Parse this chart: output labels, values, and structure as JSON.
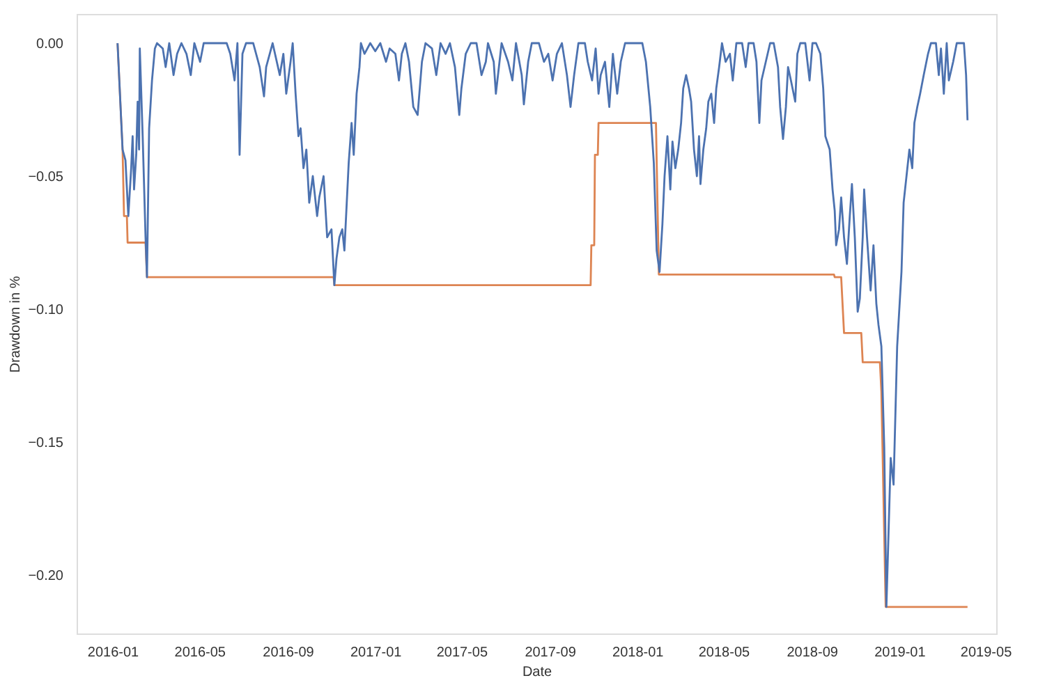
{
  "chart_data": {
    "type": "line",
    "xlabel": "Date",
    "ylabel": "Drawdown in %",
    "xlim": [
      "2015-11-12",
      "2019-05-16"
    ],
    "xticks": [
      "2016-01",
      "2016-05",
      "2016-09",
      "2017-01",
      "2017-05",
      "2017-09",
      "2018-01",
      "2018-05",
      "2018-09",
      "2019-01",
      "2019-05"
    ],
    "ylim": [
      -0.222,
      0.011
    ],
    "yticks": [
      {
        "value": 0,
        "label": "0.00"
      },
      {
        "value": -0.05,
        "label": "−0.05"
      },
      {
        "value": -0.1,
        "label": "−0.10"
      },
      {
        "value": -0.15,
        "label": "−0.15"
      },
      {
        "value": -0.2,
        "label": "−0.20"
      }
    ],
    "grid": false,
    "series": [
      {
        "color": "#4c72b0",
        "x": [
          "2016-01-08",
          "2016-01-15",
          "2016-01-19",
          "2016-01-23",
          "2016-01-27",
          "2016-01-29",
          "2016-01-31",
          "2016-02-03",
          "2016-02-05",
          "2016-02-07",
          "2016-02-08",
          "2016-02-12",
          "2016-02-16",
          "2016-02-18",
          "2016-02-21",
          "2016-02-25",
          "2016-02-29",
          "2016-03-03",
          "2016-03-11",
          "2016-03-15",
          "2016-03-20",
          "2016-03-26",
          "2016-03-31",
          "2016-04-06",
          "2016-04-13",
          "2016-04-19",
          "2016-04-24",
          "2016-05-02",
          "2016-05-07",
          "2016-05-17",
          "2016-05-30",
          "2016-06-08",
          "2016-06-13",
          "2016-06-19",
          "2016-06-23",
          "2016-06-26",
          "2016-06-30",
          "2016-07-05",
          "2016-07-15",
          "2016-07-24",
          "2016-07-30",
          "2016-08-02",
          "2016-08-11",
          "2016-08-21",
          "2016-08-26",
          "2016-08-30",
          "2016-09-05",
          "2016-09-08",
          "2016-09-12",
          "2016-09-16",
          "2016-09-19",
          "2016-09-23",
          "2016-09-27",
          "2016-10-01",
          "2016-10-06",
          "2016-10-12",
          "2016-10-15",
          "2016-10-21",
          "2016-10-26",
          "2016-11-01",
          "2016-11-05",
          "2016-11-08",
          "2016-11-12",
          "2016-11-16",
          "2016-11-19",
          "2016-11-25",
          "2016-11-29",
          "2016-12-02",
          "2016-12-06",
          "2016-12-10",
          "2016-12-12",
          "2016-12-17",
          "2016-12-25",
          "2017-01-01",
          "2017-01-08",
          "2017-01-16",
          "2017-01-21",
          "2017-01-29",
          "2017-02-03",
          "2017-02-07",
          "2017-02-12",
          "2017-02-17",
          "2017-02-23",
          "2017-03-01",
          "2017-03-07",
          "2017-03-12",
          "2017-03-21",
          "2017-03-27",
          "2017-04-02",
          "2017-04-09",
          "2017-04-15",
          "2017-04-22",
          "2017-04-28",
          "2017-05-01",
          "2017-05-07",
          "2017-05-14",
          "2017-05-22",
          "2017-05-29",
          "2017-06-04",
          "2017-06-07",
          "2017-06-15",
          "2017-06-18",
          "2017-06-26",
          "2017-07-05",
          "2017-07-11",
          "2017-07-16",
          "2017-07-24",
          "2017-07-27",
          "2017-08-02",
          "2017-08-07",
          "2017-08-17",
          "2017-08-24",
          "2017-08-30",
          "2017-09-05",
          "2017-09-11",
          "2017-09-18",
          "2017-09-25",
          "2017-09-30",
          "2017-10-05",
          "2017-10-11",
          "2017-10-20",
          "2017-10-24",
          "2017-10-30",
          "2017-11-04",
          "2017-11-08",
          "2017-11-11",
          "2017-11-17",
          "2017-11-23",
          "2017-11-28",
          "2017-12-04",
          "2017-12-09",
          "2017-12-15",
          "2017-12-24",
          "2017-12-30",
          "2018-01-08",
          "2018-01-13",
          "2018-01-19",
          "2018-01-24",
          "2018-01-28",
          "2018-02-01",
          "2018-02-05",
          "2018-02-08",
          "2018-02-12",
          "2018-02-16",
          "2018-02-19",
          "2018-02-23",
          "2018-02-27",
          "2018-03-03",
          "2018-03-06",
          "2018-03-10",
          "2018-03-14",
          "2018-03-17",
          "2018-03-21",
          "2018-03-25",
          "2018-03-28",
          "2018-03-30",
          "2018-04-03",
          "2018-04-07",
          "2018-04-10",
          "2018-04-14",
          "2018-04-18",
          "2018-04-21",
          "2018-04-25",
          "2018-04-29",
          "2018-05-04",
          "2018-05-10",
          "2018-05-14",
          "2018-05-19",
          "2018-05-27",
          "2018-06-01",
          "2018-06-05",
          "2018-06-12",
          "2018-06-16",
          "2018-06-20",
          "2018-06-23",
          "2018-06-29",
          "2018-07-05",
          "2018-07-10",
          "2018-07-16",
          "2018-07-19",
          "2018-07-23",
          "2018-07-27",
          "2018-07-30",
          "2018-08-03",
          "2018-08-09",
          "2018-08-12",
          "2018-08-16",
          "2018-08-23",
          "2018-08-29",
          "2018-09-02",
          "2018-09-07",
          "2018-09-13",
          "2018-09-17",
          "2018-09-20",
          "2018-09-26",
          "2018-09-30",
          "2018-10-03",
          "2018-10-05",
          "2018-10-09",
          "2018-10-12",
          "2018-10-16",
          "2018-10-20",
          "2018-10-24",
          "2018-10-27",
          "2018-10-31",
          "2018-11-04",
          "2018-11-07",
          "2018-11-11",
          "2018-11-13",
          "2018-11-17",
          "2018-11-22",
          "2018-11-26",
          "2018-11-30",
          "2018-12-03",
          "2018-12-07",
          "2018-12-11",
          "2018-12-14",
          "2018-12-20",
          "2018-12-24",
          "2018-12-29",
          "2019-01-04",
          "2019-01-07",
          "2019-01-11",
          "2019-01-15",
          "2019-01-19",
          "2019-01-22",
          "2019-01-26",
          "2019-01-30",
          "2019-02-04",
          "2019-02-10",
          "2019-02-14",
          "2019-02-21",
          "2019-02-25",
          "2019-02-28",
          "2019-03-04",
          "2019-03-08",
          "2019-03-11",
          "2019-03-17",
          "2019-03-22",
          "2019-04-01",
          "2019-04-04",
          "2019-04-06"
        ],
        "values": [
          0,
          -0.04,
          -0.044,
          -0.065,
          -0.047,
          -0.035,
          -0.055,
          -0.042,
          -0.022,
          -0.04,
          -0.002,
          -0.035,
          -0.073,
          -0.088,
          -0.032,
          -0.014,
          -0.002,
          0,
          -0.002,
          -0.009,
          0,
          -0.012,
          -0.004,
          0,
          -0.004,
          -0.012,
          0,
          -0.007,
          0,
          0,
          0,
          0,
          -0.004,
          -0.014,
          0,
          -0.042,
          -0.004,
          0,
          0,
          -0.009,
          -0.02,
          -0.009,
          0,
          -0.012,
          -0.004,
          -0.019,
          -0.007,
          0,
          -0.019,
          -0.035,
          -0.032,
          -0.047,
          -0.04,
          -0.06,
          -0.05,
          -0.065,
          -0.058,
          -0.05,
          -0.073,
          -0.07,
          -0.091,
          -0.081,
          -0.073,
          -0.07,
          -0.078,
          -0.045,
          -0.03,
          -0.042,
          -0.019,
          -0.009,
          0,
          -0.004,
          0,
          -0.003,
          0,
          -0.007,
          -0.002,
          -0.004,
          -0.014,
          -0.004,
          0,
          -0.007,
          -0.024,
          -0.027,
          -0.007,
          0,
          -0.002,
          -0.012,
          0,
          -0.004,
          0,
          -0.009,
          -0.027,
          -0.017,
          -0.004,
          0,
          0,
          -0.012,
          -0.007,
          0,
          -0.007,
          -0.019,
          0,
          -0.007,
          -0.014,
          0,
          -0.012,
          -0.023,
          -0.007,
          0,
          0,
          -0.007,
          -0.004,
          -0.014,
          -0.004,
          0,
          -0.012,
          -0.024,
          -0.012,
          0,
          0,
          -0.007,
          -0.014,
          -0.002,
          -0.019,
          -0.012,
          -0.007,
          -0.024,
          -0.004,
          -0.019,
          -0.007,
          0,
          0,
          0,
          0,
          -0.007,
          -0.024,
          -0.045,
          -0.078,
          -0.086,
          -0.068,
          -0.05,
          -0.035,
          -0.055,
          -0.037,
          -0.047,
          -0.04,
          -0.03,
          -0.017,
          -0.012,
          -0.017,
          -0.022,
          -0.04,
          -0.05,
          -0.035,
          -0.053,
          -0.04,
          -0.032,
          -0.022,
          -0.019,
          -0.03,
          -0.017,
          -0.009,
          0,
          -0.007,
          -0.004,
          -0.014,
          0,
          0,
          -0.009,
          0,
          0,
          -0.007,
          -0.03,
          -0.014,
          -0.007,
          0,
          0,
          -0.009,
          -0.024,
          -0.036,
          -0.024,
          -0.009,
          -0.014,
          -0.022,
          -0.004,
          0,
          0,
          -0.014,
          0,
          0,
          -0.004,
          -0.017,
          -0.035,
          -0.04,
          -0.055,
          -0.063,
          -0.076,
          -0.07,
          -0.058,
          -0.073,
          -0.083,
          -0.065,
          -0.053,
          -0.073,
          -0.101,
          -0.096,
          -0.073,
          -0.055,
          -0.073,
          -0.093,
          -0.076,
          -0.098,
          -0.106,
          -0.114,
          -0.152,
          -0.212,
          -0.156,
          -0.166,
          -0.114,
          -0.086,
          -0.06,
          -0.05,
          -0.04,
          -0.047,
          -0.03,
          -0.024,
          -0.019,
          -0.012,
          -0.004,
          0,
          0,
          -0.012,
          -0.002,
          -0.019,
          0,
          -0.014,
          -0.007,
          0,
          0,
          -0.012,
          -0.029
        ]
      },
      {
        "color": "#dd8452",
        "x": [
          "2016-01-08",
          "2016-01-15",
          "2016-01-17",
          "2016-01-21",
          "2016-01-22",
          "2016-02-16",
          "2016-02-18",
          "2016-11-04",
          "2016-11-05",
          "2017-10-28",
          "2017-10-29",
          "2017-11-02",
          "2017-11-03",
          "2017-11-07",
          "2017-11-08",
          "2018-01-27",
          "2018-01-31",
          "2018-10-02",
          "2018-10-03",
          "2018-10-12",
          "2018-10-16",
          "2018-11-09",
          "2018-11-11",
          "2018-12-05",
          "2018-12-07",
          "2018-12-13",
          "2019-04-06"
        ],
        "values": [
          0,
          -0.04,
          -0.065,
          -0.065,
          -0.075,
          -0.075,
          -0.088,
          -0.088,
          -0.091,
          -0.091,
          -0.076,
          -0.076,
          -0.042,
          -0.042,
          -0.03,
          -0.03,
          -0.087,
          -0.087,
          -0.088,
          -0.088,
          -0.109,
          -0.109,
          -0.12,
          -0.12,
          -0.131,
          -0.212,
          -0.212
        ]
      }
    ]
  }
}
